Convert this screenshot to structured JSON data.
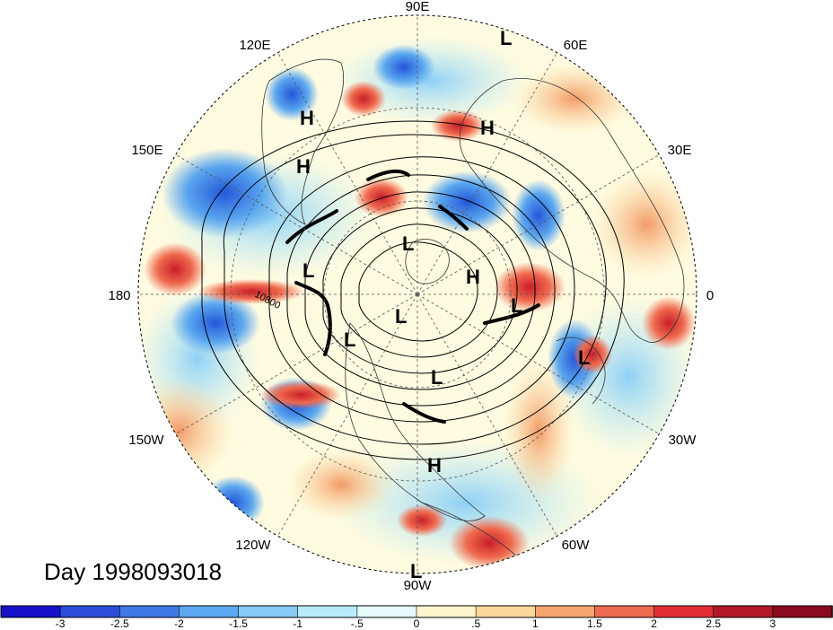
{
  "map": {
    "projection": "north-polar-stereographic",
    "contour_label": "10800",
    "longitude_labels": [
      "90E",
      "60E",
      "30E",
      "0",
      "30W",
      "60W",
      "90W",
      "120W",
      "150W",
      "180",
      "150E",
      "120E"
    ],
    "pressure_centers": [
      "L",
      "H",
      "H",
      "H",
      "L",
      "L",
      "H",
      "L",
      "L",
      "L",
      "L",
      "L",
      "L",
      "H"
    ],
    "colors": {
      "strong_negative": "#1a1acc",
      "negative": "#3f8fe8",
      "weak_negative": "#a8e6f5",
      "neutral": "#fefddf",
      "weak_positive": "#f7c892",
      "positive": "#ea3a2e",
      "strong_positive": "#a80c1c"
    }
  },
  "title": {
    "day_label": "Day 1998093018"
  },
  "colorbar": {
    "tick_labels": [
      "-3",
      "-2.5",
      "-2",
      "-1.5",
      "-1",
      "-.5",
      "0",
      ".5",
      "1",
      "1.5",
      "2",
      "2.5",
      "3"
    ],
    "colors": [
      "#1610c8",
      "#2b4cdb",
      "#3f79e6",
      "#5ba8f0",
      "#86cbf5",
      "#b8ecfa",
      "#e6f9fb",
      "#fdf6cc",
      "#fbd79a",
      "#f5a570",
      "#ee6a50",
      "#e13034",
      "#b3182a",
      "#8a0a1e"
    ]
  }
}
